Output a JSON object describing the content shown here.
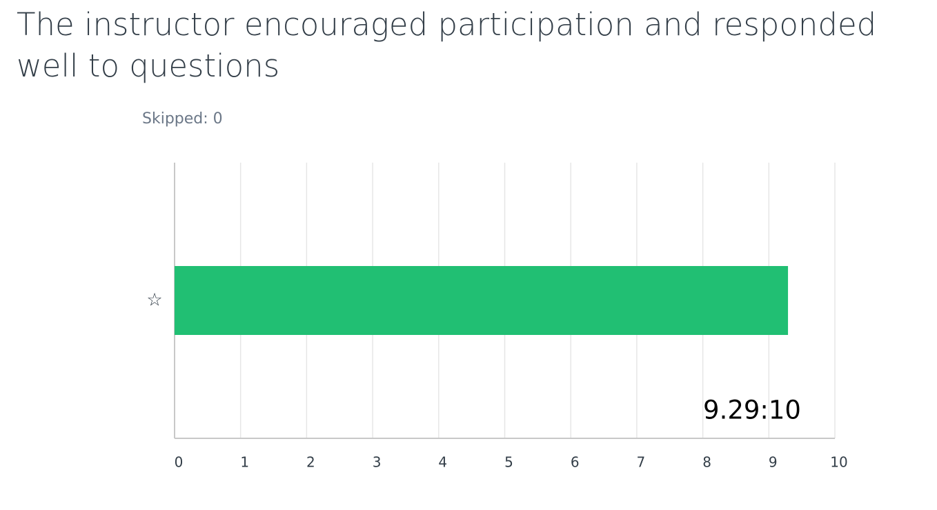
{
  "chart_data": {
    "type": "hbar",
    "title": "The instructor encouraged participation and responded well to questions",
    "subtitle": "Skipped: 0",
    "categories": [
      "☆"
    ],
    "values": [
      9.29
    ],
    "value_labels": [
      "9.29:10"
    ],
    "color": "#21bf73",
    "xlim": [
      0,
      10
    ],
    "xticks": [
      0,
      1,
      2,
      3,
      4,
      5,
      6,
      7,
      8,
      9,
      10
    ],
    "grid": true
  }
}
